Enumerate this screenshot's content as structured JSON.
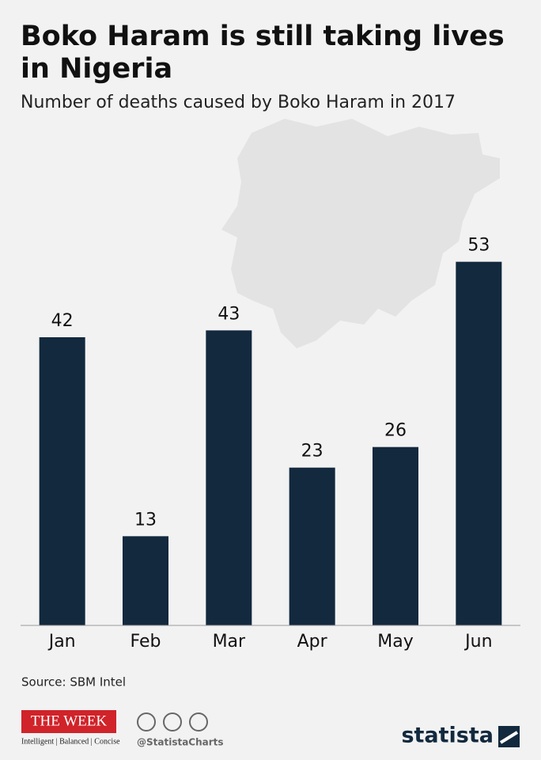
{
  "chart_data": {
    "type": "bar",
    "title": "Boko Haram is still taking lives in Nigeria",
    "subtitle": "Number of deaths caused by Boko Haram in 2017",
    "categories": [
      "Jan",
      "Feb",
      "Mar",
      "Apr",
      "May",
      "Jun"
    ],
    "values": [
      42,
      13,
      43,
      23,
      26,
      53
    ],
    "color": "#12293e",
    "ylim": [
      0,
      60
    ],
    "source": "Source: SBM Intel",
    "publisher": "THE WEEK",
    "publisher_tagline": "Intelligent | Balanced | Concise",
    "handle": "@StatistaCharts",
    "brand": "statista"
  }
}
